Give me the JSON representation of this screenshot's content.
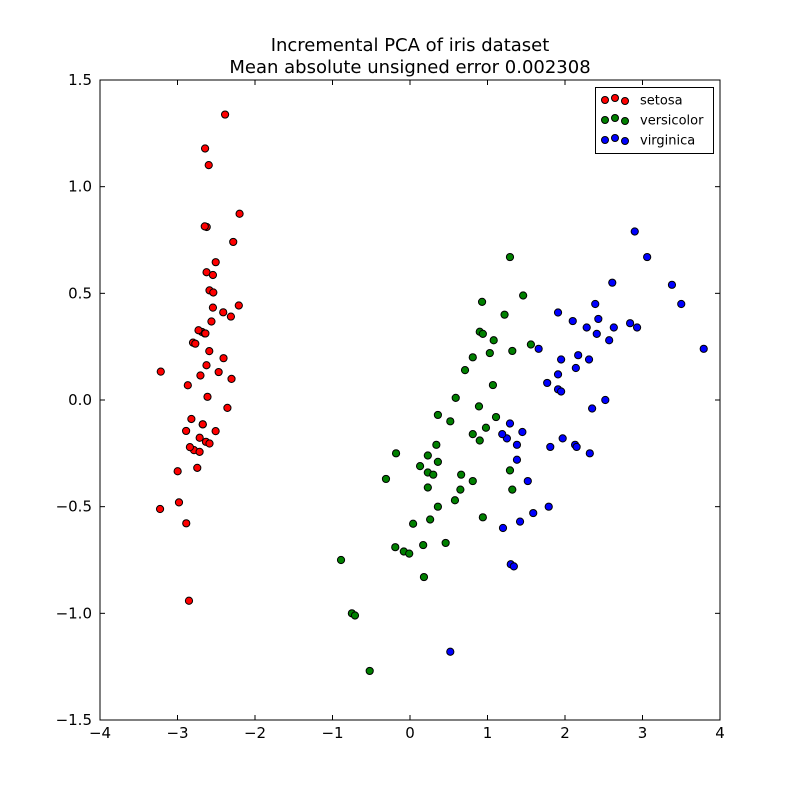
{
  "chart_data": {
    "type": "scatter",
    "title": "Incremental PCA of iris dataset",
    "subtitle": "Mean absolute unsigned error 0.002308",
    "xlabel": "",
    "ylabel": "",
    "xlim": [
      -4,
      4
    ],
    "ylim": [
      -1.5,
      1.5
    ],
    "xticks": [
      -4,
      -3,
      -2,
      -1,
      0,
      1,
      2,
      3,
      4
    ],
    "xtick_labels": [
      "−4",
      "−3",
      "−2",
      "−1",
      "0",
      "1",
      "2",
      "3",
      "4"
    ],
    "yticks": [
      -1.5,
      -1.0,
      -0.5,
      0.0,
      0.5,
      1.0,
      1.5
    ],
    "ytick_labels": [
      "−1.5",
      "−1.0",
      "−0.5",
      "0.0",
      "0.5",
      "1.0",
      "1.5"
    ],
    "grid": false,
    "legend_position": "top-right",
    "series": [
      {
        "name": "setosa",
        "color": "#ff0000",
        "points": [
          [
            -2.684,
            0.319
          ],
          [
            -2.714,
            -0.177
          ],
          [
            -2.889,
            -0.145
          ],
          [
            -2.745,
            -0.318
          ],
          [
            -2.729,
            0.327
          ],
          [
            -2.281,
            0.741
          ],
          [
            -2.821,
            -0.089
          ],
          [
            -2.626,
            0.163
          ],
          [
            -2.887,
            -0.578
          ],
          [
            -2.674,
            -0.114
          ],
          [
            -2.507,
            0.646
          ],
          [
            -2.613,
            0.015
          ],
          [
            -2.787,
            -0.235
          ],
          [
            -3.225,
            -0.511
          ],
          [
            -2.644,
            1.179
          ],
          [
            -2.386,
            1.338
          ],
          [
            -2.623,
            0.811
          ],
          [
            -2.648,
            0.312
          ],
          [
            -2.199,
            0.873
          ],
          [
            -2.587,
            0.514
          ],
          [
            -2.311,
            0.391
          ],
          [
            -2.543,
            0.433
          ],
          [
            -3.216,
            0.133
          ],
          [
            -2.303,
            0.099
          ],
          [
            -2.356,
            -0.037
          ],
          [
            -2.508,
            -0.146
          ],
          [
            -2.469,
            0.131
          ],
          [
            -2.562,
            0.368
          ],
          [
            -2.64,
            0.312
          ],
          [
            -2.633,
            -0.196
          ],
          [
            -2.587,
            -0.204
          ],
          [
            -2.41,
            0.411
          ],
          [
            -2.648,
            0.814
          ],
          [
            -2.597,
            1.101
          ],
          [
            -2.674,
            -0.114
          ],
          [
            -2.867,
            0.069
          ],
          [
            -2.625,
            0.599
          ],
          [
            -2.8,
            0.269
          ],
          [
            -2.981,
            -0.48
          ],
          [
            -2.59,
            0.229
          ],
          [
            -2.77,
            0.264
          ],
          [
            -2.852,
            -0.941
          ],
          [
            -2.998,
            -0.334
          ],
          [
            -2.406,
            0.196
          ],
          [
            -2.209,
            0.443
          ],
          [
            -2.715,
            -0.243
          ],
          [
            -2.538,
            0.504
          ],
          [
            -2.84,
            -0.221
          ],
          [
            -2.543,
            0.586
          ],
          [
            -2.704,
            0.115
          ]
        ]
      },
      {
        "name": "versicolor",
        "color": "#008000",
        "points": [
          [
            1.29,
            0.67
          ],
          [
            1.46,
            0.49
          ],
          [
            0.93,
            0.46
          ],
          [
            1.22,
            0.4
          ],
          [
            0.9,
            0.32
          ],
          [
            0.94,
            0.31
          ],
          [
            1.08,
            0.28
          ],
          [
            1.56,
            0.26
          ],
          [
            1.32,
            0.23
          ],
          [
            1.03,
            0.22
          ],
          [
            0.81,
            0.2
          ],
          [
            0.71,
            0.14
          ],
          [
            1.07,
            0.07
          ],
          [
            0.59,
            0.01
          ],
          [
            0.36,
            -0.07
          ],
          [
            1.11,
            -0.08
          ],
          [
            0.89,
            -0.03
          ],
          [
            0.52,
            -0.1
          ],
          [
            0.98,
            -0.13
          ],
          [
            0.81,
            -0.16
          ],
          [
            0.9,
            -0.19
          ],
          [
            0.34,
            -0.21
          ],
          [
            -0.18,
            -0.25
          ],
          [
            0.23,
            -0.26
          ],
          [
            0.36,
            -0.29
          ],
          [
            0.13,
            -0.31
          ],
          [
            0.23,
            -0.34
          ],
          [
            0.3,
            -0.35
          ],
          [
            0.66,
            -0.35
          ],
          [
            1.29,
            -0.33
          ],
          [
            -0.31,
            -0.37
          ],
          [
            0.81,
            -0.38
          ],
          [
            0.23,
            -0.41
          ],
          [
            0.65,
            -0.42
          ],
          [
            1.32,
            -0.42
          ],
          [
            0.58,
            -0.47
          ],
          [
            0.36,
            -0.5
          ],
          [
            0.94,
            -0.55
          ],
          [
            0.26,
            -0.56
          ],
          [
            0.04,
            -0.58
          ],
          [
            0.46,
            -0.67
          ],
          [
            0.17,
            -0.68
          ],
          [
            -0.19,
            -0.69
          ],
          [
            -0.08,
            -0.71
          ],
          [
            -0.01,
            -0.72
          ],
          [
            0.18,
            -0.83
          ],
          [
            -0.89,
            -0.75
          ],
          [
            -0.75,
            -1.0
          ],
          [
            -0.71,
            -1.01
          ],
          [
            -0.52,
            -1.27
          ]
        ]
      },
      {
        "name": "virginica",
        "color": "#0000ff",
        "points": [
          [
            2.9,
            0.79
          ],
          [
            3.06,
            0.67
          ],
          [
            3.38,
            0.54
          ],
          [
            3.5,
            0.45
          ],
          [
            3.79,
            0.24
          ],
          [
            2.61,
            0.55
          ],
          [
            2.39,
            0.45
          ],
          [
            1.91,
            0.41
          ],
          [
            2.1,
            0.37
          ],
          [
            2.43,
            0.38
          ],
          [
            2.28,
            0.34
          ],
          [
            2.63,
            0.34
          ],
          [
            2.84,
            0.36
          ],
          [
            2.93,
            0.34
          ],
          [
            2.41,
            0.31
          ],
          [
            2.57,
            0.28
          ],
          [
            1.66,
            0.24
          ],
          [
            2.31,
            0.19
          ],
          [
            1.95,
            0.19
          ],
          [
            2.17,
            0.21
          ],
          [
            2.14,
            0.15
          ],
          [
            1.91,
            0.12
          ],
          [
            1.77,
            0.08
          ],
          [
            1.91,
            0.05
          ],
          [
            1.95,
            0.04
          ],
          [
            2.52,
            0.0
          ],
          [
            2.35,
            -0.04
          ],
          [
            1.29,
            -0.11
          ],
          [
            1.45,
            -0.15
          ],
          [
            1.25,
            -0.18
          ],
          [
            1.19,
            -0.16
          ],
          [
            1.97,
            -0.18
          ],
          [
            1.81,
            -0.22
          ],
          [
            2.13,
            -0.21
          ],
          [
            2.15,
            -0.22
          ],
          [
            1.38,
            -0.21
          ],
          [
            2.32,
            -0.25
          ],
          [
            1.38,
            -0.28
          ],
          [
            1.52,
            -0.38
          ],
          [
            1.79,
            -0.5
          ],
          [
            1.59,
            -0.53
          ],
          [
            1.42,
            -0.57
          ],
          [
            1.2,
            -0.6
          ],
          [
            1.3,
            -0.77
          ],
          [
            1.34,
            -0.78
          ],
          [
            0.52,
            -1.18
          ]
        ]
      }
    ]
  }
}
